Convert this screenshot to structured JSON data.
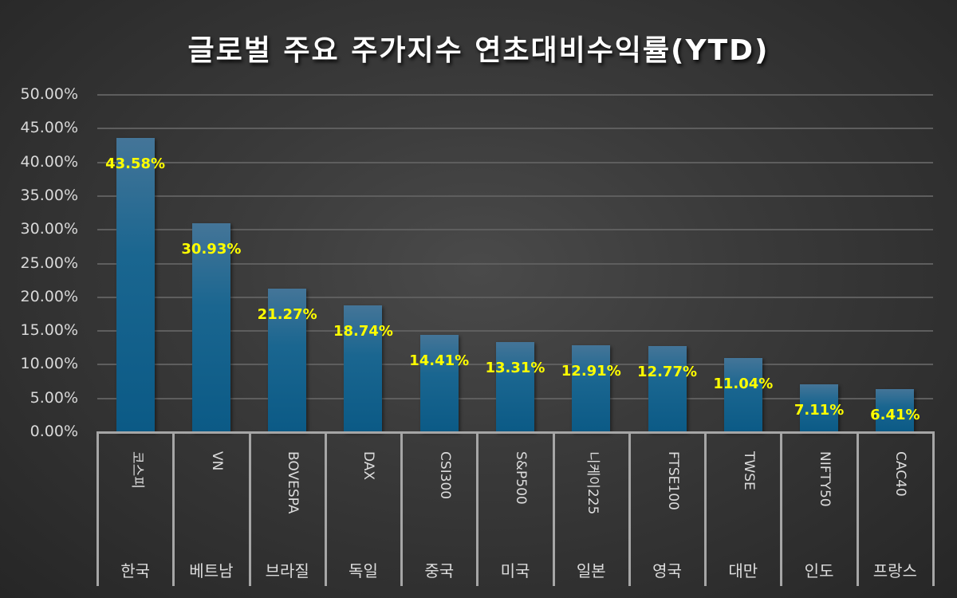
{
  "title": "글로벌 주요 주가지수 연초대비수익률(YTD)",
  "y_axis": {
    "ticks": [
      "50.00%",
      "45.00%",
      "40.00%",
      "35.00%",
      "30.00%",
      "25.00%",
      "20.00%",
      "15.00%",
      "10.00%",
      "5.00%",
      "0.00%"
    ]
  },
  "colors": {
    "bar": "#1a6690",
    "data_label": "#ffff00",
    "background": "#3a3a3a",
    "text": "#d9d9d9"
  },
  "bars": [
    {
      "index": "코스피",
      "country": "한국",
      "value": 43.58,
      "label": "43.58%"
    },
    {
      "index": "VN",
      "country": "베트남",
      "value": 30.93,
      "label": "30.93%"
    },
    {
      "index": "BOVESPA",
      "country": "브라질",
      "value": 21.27,
      "label": "21.27%"
    },
    {
      "index": "DAX",
      "country": "독일",
      "value": 18.74,
      "label": "18.74%"
    },
    {
      "index": "CSI300",
      "country": "중국",
      "value": 14.41,
      "label": "14.41%"
    },
    {
      "index": "S&P500",
      "country": "미국",
      "value": 13.31,
      "label": "13.31%"
    },
    {
      "index": "니케이225",
      "country": "일본",
      "value": 12.91,
      "label": "12.91%"
    },
    {
      "index": "FTSE100",
      "country": "영국",
      "value": 12.77,
      "label": "12.77%"
    },
    {
      "index": "TWSE",
      "country": "대만",
      "value": 11.04,
      "label": "11.04%"
    },
    {
      "index": "NIFTY50",
      "country": "인도",
      "value": 7.11,
      "label": "7.11%"
    },
    {
      "index": "CAC40",
      "country": "프랑스",
      "value": 6.41,
      "label": "6.41%"
    }
  ],
  "chart_data": {
    "type": "bar",
    "title": "글로벌 주요 주가지수 연초대비수익률(YTD)",
    "categories": [
      "코스피",
      "VN",
      "BOVESPA",
      "DAX",
      "CSI300",
      "S&P500",
      "니케이225",
      "FTSE100",
      "TWSE",
      "NIFTY50",
      "CAC40"
    ],
    "category_groups": [
      "한국",
      "베트남",
      "브라질",
      "독일",
      "중국",
      "미국",
      "일본",
      "영국",
      "대만",
      "인도",
      "프랑스"
    ],
    "values": [
      43.58,
      30.93,
      21.27,
      18.74,
      14.41,
      13.31,
      12.91,
      12.77,
      11.04,
      7.11,
      6.41
    ],
    "data_labels": [
      "43.58%",
      "30.93%",
      "21.27%",
      "18.74%",
      "14.41%",
      "13.31%",
      "12.91%",
      "12.77%",
      "11.04%",
      "7.11%",
      "6.41%"
    ],
    "xlabel": "",
    "ylabel": "",
    "ylim": [
      0,
      50
    ],
    "y_tick_step": 5,
    "y_tick_format": "0.00%",
    "grid": true,
    "legend": null
  }
}
